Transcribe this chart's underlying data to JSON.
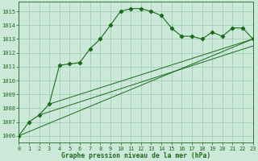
{
  "x": [
    0,
    1,
    2,
    3,
    4,
    5,
    6,
    7,
    8,
    9,
    10,
    11,
    12,
    13,
    14,
    15,
    16,
    17,
    18,
    19,
    20,
    21,
    22,
    23
  ],
  "pressure": [
    1006.0,
    1007.0,
    1007.5,
    1008.3,
    1011.1,
    1011.2,
    1011.3,
    1012.3,
    1013.0,
    1014.0,
    1015.0,
    1015.2,
    1015.2,
    1015.0,
    1014.7,
    1013.8,
    1013.2,
    1013.2,
    1013.0,
    1013.5,
    1013.2,
    1013.8,
    1013.8,
    1013.0
  ],
  "trend_line1_x": [
    0,
    23
  ],
  "trend_line1_y": [
    1006.0,
    1013.0
  ],
  "trend_line2_x": [
    2,
    23
  ],
  "trend_line2_y": [
    1007.5,
    1012.5
  ],
  "trend_line3_x": [
    3,
    23
  ],
  "trend_line3_y": [
    1008.3,
    1013.0
  ],
  "xlim": [
    0,
    23
  ],
  "ylim": [
    1005.5,
    1015.7
  ],
  "yticks": [
    1006,
    1007,
    1008,
    1009,
    1010,
    1011,
    1012,
    1013,
    1014,
    1015
  ],
  "xticks": [
    0,
    1,
    2,
    3,
    4,
    5,
    6,
    7,
    8,
    9,
    10,
    11,
    12,
    13,
    14,
    15,
    16,
    17,
    18,
    19,
    20,
    21,
    22,
    23
  ],
  "xlabel": "Graphe pression niveau de la mer (hPa)",
  "line_color": "#1a6b1a",
  "bg_color": "#cce8d8",
  "grid_color": "#99ccb0",
  "marker": "D",
  "marker_size": 2.2,
  "tick_fontsize": 5.0,
  "xlabel_fontsize": 5.8
}
